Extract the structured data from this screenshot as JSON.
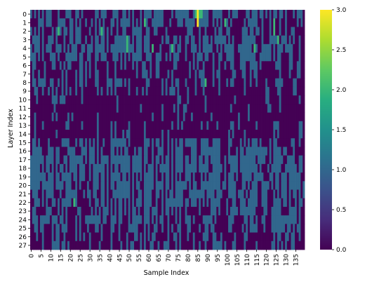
{
  "chart_data": {
    "type": "heatmap",
    "title": "",
    "xlabel": "Sample Index",
    "ylabel": "Layer Index",
    "colormap": "viridis",
    "colorbar": {
      "min": 0.0,
      "max": 3.0,
      "ticks": [
        "0.0",
        "0.5",
        "1.0",
        "1.5",
        "2.0",
        "2.5",
        "3.0"
      ]
    },
    "x_tick_labels": [
      "0",
      "5",
      "10",
      "15",
      "20",
      "25",
      "30",
      "35",
      "40",
      "45",
      "50",
      "55",
      "60",
      "65",
      "70",
      "75",
      "80",
      "85",
      "90",
      "95",
      "100",
      "105",
      "110",
      "115",
      "120",
      "125",
      "130",
      "135"
    ],
    "x_tick_values": [
      0,
      5,
      10,
      15,
      20,
      25,
      30,
      35,
      40,
      45,
      50,
      55,
      60,
      65,
      70,
      75,
      80,
      85,
      90,
      95,
      100,
      105,
      110,
      115,
      120,
      125,
      130,
      135
    ],
    "y_tick_labels": [
      "0",
      "1",
      "2",
      "3",
      "4",
      "5",
      "6",
      "7",
      "8",
      "9",
      "10",
      "11",
      "12",
      "13",
      "14",
      "15",
      "16",
      "17",
      "18",
      "19",
      "20",
      "21",
      "22",
      "23",
      "24",
      "25",
      "26",
      "27"
    ],
    "n_cols": 140,
    "n_rows": 28,
    "row_density_profile": [
      0.55,
      0.4,
      0.4,
      0.55,
      0.6,
      0.5,
      0.25,
      0.22,
      0.25,
      0.15,
      0.08,
      0.05,
      0.06,
      0.12,
      0.1,
      0.4,
      0.45,
      0.65,
      0.7,
      0.7,
      0.65,
      0.55,
      0.55,
      0.4,
      0.4,
      0.3,
      0.25,
      0.18
    ],
    "highlights": [
      {
        "row": 0,
        "col": 85,
        "value": 3.0
      },
      {
        "row": 1,
        "col": 85,
        "value": 3.0
      },
      {
        "row": 0,
        "col": 84,
        "value": 2.0
      },
      {
        "row": 0,
        "col": 86,
        "value": 2.0
      },
      {
        "row": 0,
        "col": 87,
        "value": 2.0
      },
      {
        "row": 1,
        "col": 99,
        "value": 2.0
      },
      {
        "row": 1,
        "col": 124,
        "value": 2.0
      },
      {
        "row": 2,
        "col": 124,
        "value": 2.0
      },
      {
        "row": 2,
        "col": 14,
        "value": 2.0
      },
      {
        "row": 3,
        "col": 49,
        "value": 2.0
      },
      {
        "row": 4,
        "col": 49,
        "value": 2.0
      },
      {
        "row": 4,
        "col": 62,
        "value": 2.0
      },
      {
        "row": 4,
        "col": 72,
        "value": 2.0
      },
      {
        "row": 4,
        "col": 114,
        "value": 2.0
      },
      {
        "row": 2,
        "col": 36,
        "value": 2.0
      },
      {
        "row": 1,
        "col": 58,
        "value": 2.0
      },
      {
        "row": 3,
        "col": 126,
        "value": 2.0
      },
      {
        "row": 8,
        "col": 89,
        "value": 2.0
      },
      {
        "row": 22,
        "col": 22,
        "value": 2.0
      }
    ]
  }
}
